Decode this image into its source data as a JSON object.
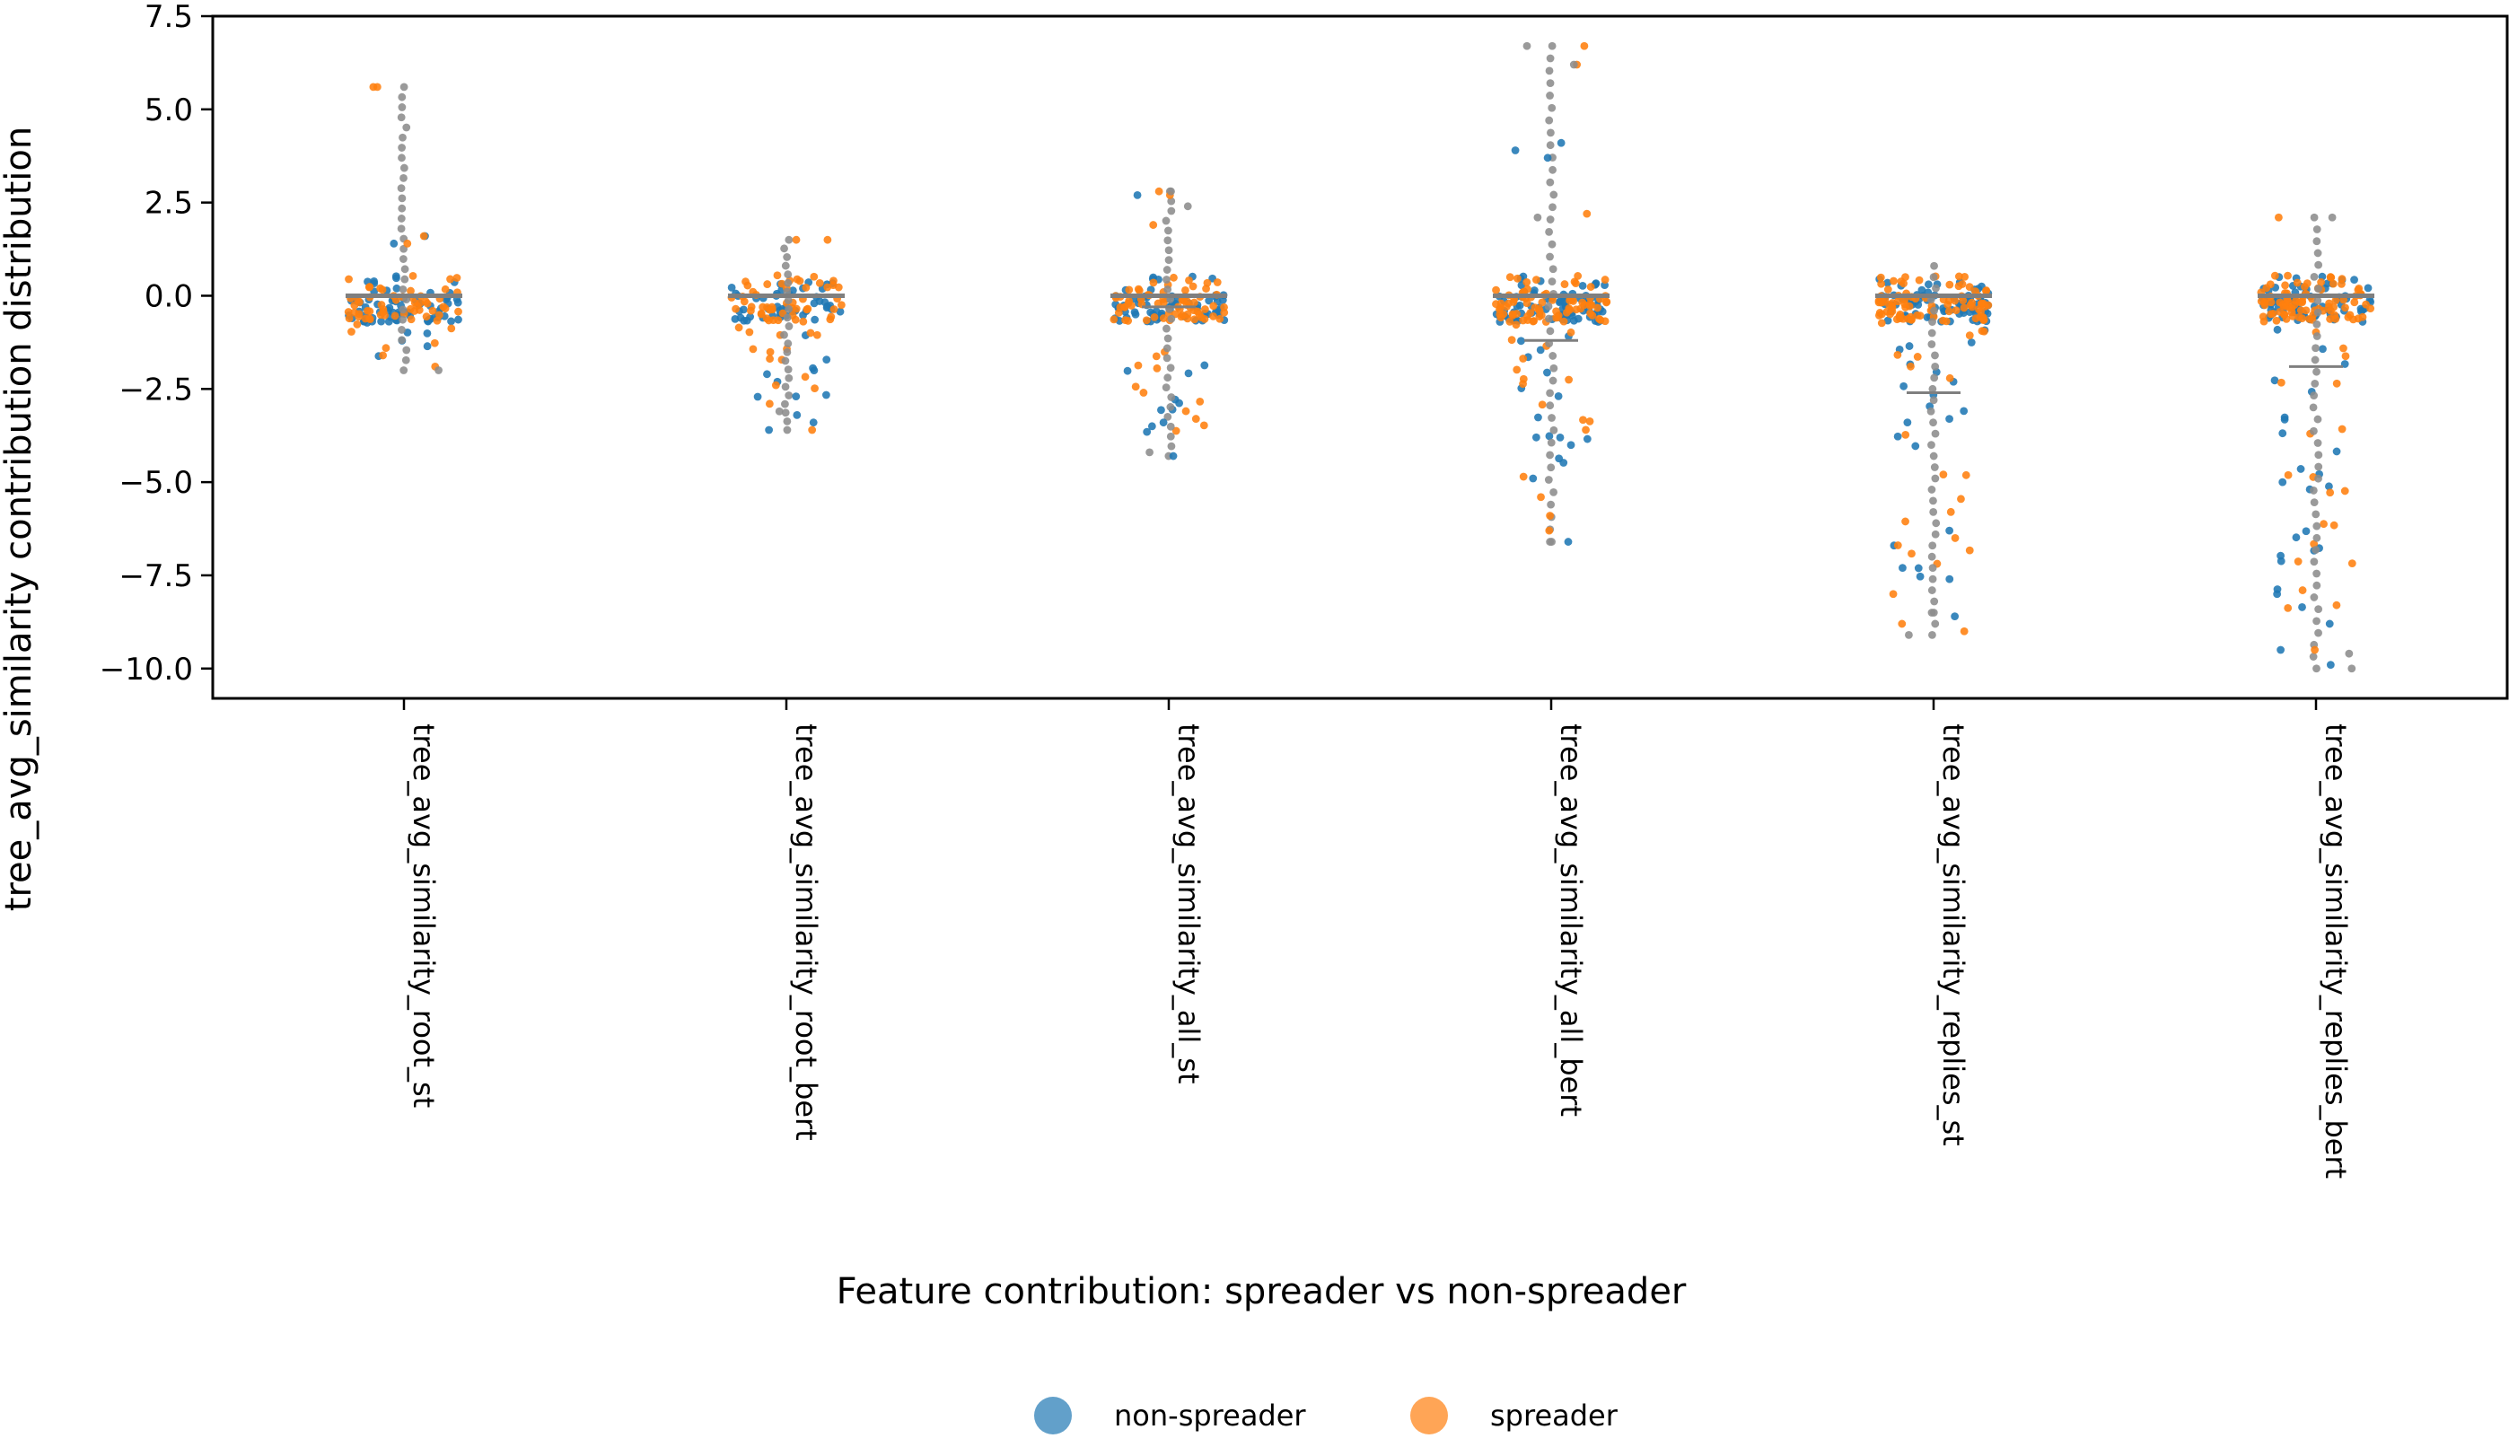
{
  "chart_data": {
    "type": "scatter",
    "subtype": "strip",
    "xlabel": "Feature contribution: spreader vs non-spreader",
    "ylabel": "tree_avg_similarity contribution distribution",
    "ylim": [
      -10.8,
      7.5
    ],
    "yticks": [
      7.5,
      5.0,
      2.5,
      0.0,
      -2.5,
      -5.0,
      -7.5,
      -10.0
    ],
    "ytick_labels": [
      "7.5",
      "5.0",
      "2.5",
      "0.0",
      "−2.5",
      "−5.0",
      "−7.5",
      "−10.0"
    ],
    "categories": [
      "tree_avg_similarity_root_st",
      "tree_avg_similarity_root_bert",
      "tree_avg_similarity_all_st",
      "tree_avg_similarity_all_bert",
      "tree_avg_similarity_replies_st",
      "tree_avg_similarity_replies_bert"
    ],
    "grid": false,
    "legend_position": "bottom-center",
    "series": [
      {
        "name": "non-spreader",
        "color": "#1f77b4"
      },
      {
        "name": "spreader",
        "color": "#ff7f0e"
      }
    ],
    "grey_point_color": "#8c8c8c",
    "distributions": [
      {
        "median": 0.0,
        "lower_quartile": 0.0,
        "min": -2.0,
        "max": 5.6,
        "counts": [
          70,
          60
        ],
        "extra": [
          [
            1,
            5.6
          ],
          [
            1,
            5.6
          ],
          [
            0,
            1.6
          ],
          [
            1,
            1.6
          ],
          [
            0,
            1.4
          ],
          [
            1,
            1.4
          ],
          [
            1,
            -1.6
          ],
          [
            1,
            -1.9
          ],
          [
            2,
            -2.0
          ]
        ]
      },
      {
        "median": 0.0,
        "lower_quartile": 0.0,
        "min": -3.6,
        "max": 1.5,
        "counts": [
          55,
          65
        ],
        "extra": [
          [
            1,
            1.5
          ],
          [
            1,
            1.5
          ],
          [
            0,
            -2.7
          ],
          [
            0,
            -3.2
          ],
          [
            0,
            -3.4
          ],
          [
            0,
            -3.6
          ],
          [
            1,
            -2.4
          ],
          [
            1,
            -3.6
          ],
          [
            2,
            -3.1
          ]
        ]
      },
      {
        "median": 0.0,
        "lower_quartile": -0.3,
        "min": -4.3,
        "max": 2.8,
        "counts": [
          70,
          75
        ],
        "extra": [
          [
            1,
            2.8
          ],
          [
            1,
            2.7
          ],
          [
            0,
            2.7
          ],
          [
            1,
            1.9
          ],
          [
            2,
            2.8
          ],
          [
            2,
            2.4
          ],
          [
            0,
            -3.4
          ],
          [
            0,
            -3.5
          ],
          [
            0,
            -4.3
          ],
          [
            1,
            -2.6
          ],
          [
            2,
            -4.2
          ]
        ]
      },
      {
        "median": 0.0,
        "lower_quartile": -1.2,
        "min": -6.6,
        "max": 6.7,
        "counts": [
          95,
          95
        ],
        "extra": [
          [
            1,
            6.7
          ],
          [
            1,
            6.2
          ],
          [
            2,
            6.7
          ],
          [
            2,
            6.2
          ],
          [
            0,
            4.1
          ],
          [
            0,
            3.9
          ],
          [
            0,
            3.7
          ],
          [
            1,
            2.2
          ],
          [
            2,
            2.1
          ],
          [
            0,
            -4.9
          ],
          [
            0,
            -6.6
          ],
          [
            1,
            -5.4
          ],
          [
            1,
            -5.9
          ],
          [
            1,
            -6.3
          ],
          [
            2,
            -6.6
          ],
          [
            0,
            -3.8
          ]
        ]
      },
      {
        "median": 0.0,
        "lower_quartile": -2.6,
        "min": -9.1,
        "max": 0.8,
        "counts": [
          95,
          105
        ],
        "extra": [
          [
            1,
            -9.0
          ],
          [
            1,
            -8.8
          ],
          [
            1,
            -8.0
          ],
          [
            0,
            -8.6
          ],
          [
            0,
            -7.6
          ],
          [
            0,
            -7.3
          ],
          [
            2,
            -9.1
          ],
          [
            2,
            -8.5
          ],
          [
            1,
            -6.5
          ],
          [
            0,
            -6.3
          ]
        ]
      },
      {
        "median": 0.0,
        "lower_quartile": -1.9,
        "min": -10.0,
        "max": 2.1,
        "counts": [
          95,
          105
        ],
        "extra": [
          [
            1,
            2.1
          ],
          [
            2,
            2.1
          ],
          [
            0,
            -9.5
          ],
          [
            0,
            -9.9
          ],
          [
            0,
            -8.8
          ],
          [
            0,
            -8.0
          ],
          [
            1,
            -9.5
          ],
          [
            1,
            -8.3
          ],
          [
            1,
            -7.9
          ],
          [
            2,
            -10.0
          ],
          [
            2,
            -9.6
          ],
          [
            0,
            -5.0
          ]
        ]
      }
    ]
  }
}
